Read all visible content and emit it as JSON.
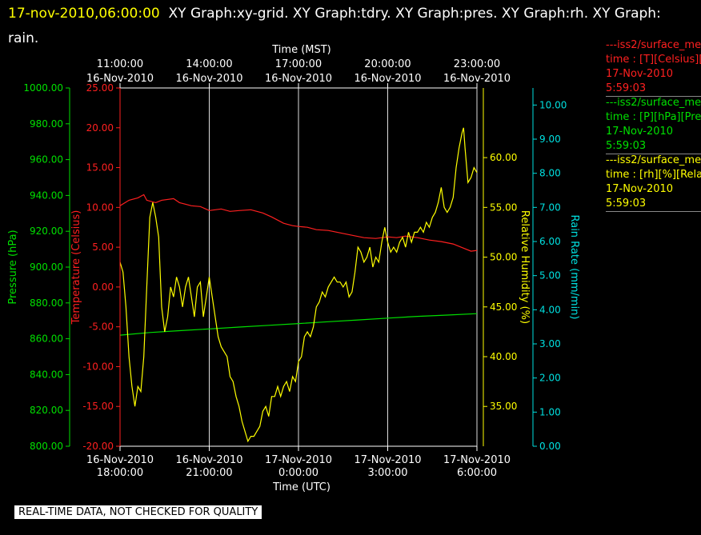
{
  "header": {
    "timestamp": "17-nov-2010,06:00:00",
    "titles": "XY Graph:xy-grid.  XY Graph:tdry.  XY Graph:pres.  XY Graph:rh.  XY Graph: rain."
  },
  "legend": [
    {
      "name": "---iss2/surface_me",
      "line2": "time : [T][Celsius][T",
      "date": "17-Nov-2010",
      "time": "5:59:03",
      "color": "#ff2020"
    },
    {
      "name": "---iss2/surface_me",
      "line2": "time : [P][hPa][Pres",
      "date": "17-Nov-2010",
      "time": "5:59:03",
      "color": "#00e000"
    },
    {
      "name": "---iss2/surface_me",
      "line2": "time : [rh][%][Relati",
      "date": "17-Nov-2010",
      "time": "5:59:03",
      "color": "#ffff00"
    }
  ],
  "banner": "REAL-TIME DATA, NOT CHECKED FOR QUALITY",
  "chart_data": {
    "type": "line",
    "grid": true,
    "x_top": {
      "label": "Time (MST)",
      "ticks": [
        {
          "x": 2,
          "l1": "11:00:00",
          "l2": "16-Nov-2010"
        },
        {
          "x": 5,
          "l1": "14:00:00",
          "l2": "16-Nov-2010"
        },
        {
          "x": 8,
          "l1": "17:00:00",
          "l2": "16-Nov-2010"
        },
        {
          "x": 11,
          "l1": "20:00:00",
          "l2": "16-Nov-2010"
        },
        {
          "x": 14,
          "l1": "23:00:00",
          "l2": "16-Nov-2010"
        }
      ]
    },
    "x_bottom": {
      "label": "Time (UTC)",
      "xlim": [
        0,
        12
      ],
      "ticks": [
        {
          "x": 0,
          "l1": "16-Nov-2010",
          "l2": "18:00:00"
        },
        {
          "x": 3,
          "l1": "16-Nov-2010",
          "l2": "21:00:00"
        },
        {
          "x": 6,
          "l1": "17-Nov-2010",
          "l2": "0:00:00"
        },
        {
          "x": 9,
          "l1": "17-Nov-2010",
          "l2": "3:00:00"
        },
        {
          "x": 12,
          "l1": "17-Nov-2010",
          "l2": "6:00:00"
        }
      ]
    },
    "axes": {
      "pressure": {
        "label": "Pressure (hPa)",
        "ylim": [
          800,
          1000
        ],
        "ticks": [
          "800.00",
          "820.00",
          "840.00",
          "860.00",
          "880.00",
          "900.00",
          "920.00",
          "940.00",
          "960.00",
          "980.00",
          "1000.00"
        ],
        "color": "#00e000"
      },
      "temperature": {
        "label": "Temperature (Celsius)",
        "ylim": [
          -20,
          25
        ],
        "ticks": [
          "-20.00",
          "-15.00",
          "-10.00",
          "-5.00",
          "0.00",
          "5.00",
          "10.00",
          "15.00",
          "20.00",
          "25.00"
        ],
        "color": "#ff2020"
      },
      "humidity": {
        "label": "Relative Humidity (%)",
        "ylim": [
          31,
          67
        ],
        "ticks": [
          "35.00",
          "40.00",
          "45.00",
          "50.00",
          "55.00",
          "60.00"
        ],
        "color": "#ffff00"
      },
      "rain": {
        "label": "Rain Rate (mm/min)",
        "ylim": [
          0,
          10.5
        ],
        "ticks": [
          "0.00",
          "1.00",
          "2.00",
          "3.00",
          "4.00",
          "5.00",
          "6.00",
          "7.00",
          "8.00",
          "9.00",
          "10.00"
        ],
        "color": "#00e0e0"
      }
    },
    "series": [
      {
        "axis": "temperature",
        "color": "#ff2020",
        "points": [
          [
            0,
            10.2
          ],
          [
            0.3,
            10.9
          ],
          [
            0.6,
            11.2
          ],
          [
            0.8,
            11.6
          ],
          [
            0.9,
            10.9
          ],
          [
            1.2,
            10.6
          ],
          [
            1.4,
            10.9
          ],
          [
            1.8,
            11.1
          ],
          [
            2.0,
            10.6
          ],
          [
            2.4,
            10.2
          ],
          [
            2.7,
            10.1
          ],
          [
            3.0,
            9.6
          ],
          [
            3.4,
            9.8
          ],
          [
            3.7,
            9.5
          ],
          [
            4.0,
            9.6
          ],
          [
            4.4,
            9.7
          ],
          [
            4.8,
            9.3
          ],
          [
            5.1,
            8.8
          ],
          [
            5.5,
            8.0
          ],
          [
            5.8,
            7.7
          ],
          [
            6.0,
            7.6
          ],
          [
            6.3,
            7.5
          ],
          [
            6.6,
            7.2
          ],
          [
            7.0,
            7.1
          ],
          [
            7.4,
            6.8
          ],
          [
            7.8,
            6.5
          ],
          [
            8.2,
            6.2
          ],
          [
            8.6,
            6.1
          ],
          [
            9.0,
            6.3
          ],
          [
            9.3,
            6.2
          ],
          [
            9.6,
            6.4
          ],
          [
            10.0,
            6.2
          ],
          [
            10.4,
            5.9
          ],
          [
            10.8,
            5.7
          ],
          [
            11.2,
            5.4
          ],
          [
            11.6,
            4.8
          ],
          [
            11.8,
            4.5
          ],
          [
            12.0,
            4.6
          ]
        ]
      },
      {
        "axis": "pressure",
        "color": "#00e000",
        "points": [
          [
            0,
            862
          ],
          [
            1,
            863.5
          ],
          [
            2,
            864.5
          ],
          [
            3,
            865.5
          ],
          [
            4,
            866.5
          ],
          [
            5,
            867.5
          ],
          [
            6,
            868.5
          ],
          [
            7,
            869.5
          ],
          [
            8,
            870.5
          ],
          [
            9,
            871.5
          ],
          [
            10,
            872.5
          ],
          [
            11,
            873.2
          ],
          [
            12,
            874
          ]
        ]
      },
      {
        "axis": "humidity",
        "color": "#ffff00",
        "points": [
          [
            0,
            49.5
          ],
          [
            0.1,
            48.5
          ],
          [
            0.2,
            45
          ],
          [
            0.3,
            40
          ],
          [
            0.4,
            37
          ],
          [
            0.5,
            35
          ],
          [
            0.6,
            37
          ],
          [
            0.7,
            36.5
          ],
          [
            0.8,
            40
          ],
          [
            0.9,
            47
          ],
          [
            1.0,
            54
          ],
          [
            1.1,
            55.5
          ],
          [
            1.2,
            54
          ],
          [
            1.3,
            52
          ],
          [
            1.4,
            45
          ],
          [
            1.5,
            42.5
          ],
          [
            1.6,
            44
          ],
          [
            1.7,
            47
          ],
          [
            1.8,
            46
          ],
          [
            1.9,
            48
          ],
          [
            2.0,
            47
          ],
          [
            2.1,
            45
          ],
          [
            2.2,
            47
          ],
          [
            2.3,
            48
          ],
          [
            2.4,
            46
          ],
          [
            2.5,
            44
          ],
          [
            2.6,
            47
          ],
          [
            2.7,
            47.5
          ],
          [
            2.8,
            44
          ],
          [
            2.9,
            46
          ],
          [
            3.0,
            48
          ],
          [
            3.1,
            46
          ],
          [
            3.2,
            44
          ],
          [
            3.3,
            42
          ],
          [
            3.4,
            41
          ],
          [
            3.5,
            40.5
          ],
          [
            3.6,
            40
          ],
          [
            3.7,
            38
          ],
          [
            3.8,
            37.5
          ],
          [
            3.9,
            36
          ],
          [
            4.0,
            35
          ],
          [
            4.1,
            33.5
          ],
          [
            4.2,
            32.5
          ],
          [
            4.3,
            31.5
          ],
          [
            4.4,
            32
          ],
          [
            4.5,
            32
          ],
          [
            4.6,
            32.5
          ],
          [
            4.7,
            33
          ],
          [
            4.8,
            34.5
          ],
          [
            4.9,
            35
          ],
          [
            5.0,
            34
          ],
          [
            5.1,
            36
          ],
          [
            5.2,
            36
          ],
          [
            5.3,
            37
          ],
          [
            5.4,
            36
          ],
          [
            5.5,
            37
          ],
          [
            5.6,
            37.5
          ],
          [
            5.7,
            36.5
          ],
          [
            5.8,
            38
          ],
          [
            5.9,
            37.5
          ],
          [
            6.0,
            39.5
          ],
          [
            6.1,
            40
          ],
          [
            6.2,
            42
          ],
          [
            6.3,
            42.5
          ],
          [
            6.4,
            42
          ],
          [
            6.5,
            43
          ],
          [
            6.6,
            45
          ],
          [
            6.7,
            45.5
          ],
          [
            6.8,
            46.5
          ],
          [
            6.9,
            46
          ],
          [
            7.0,
            47
          ],
          [
            7.1,
            47.5
          ],
          [
            7.2,
            48
          ],
          [
            7.3,
            47.5
          ],
          [
            7.4,
            47.5
          ],
          [
            7.5,
            47
          ],
          [
            7.6,
            47.5
          ],
          [
            7.7,
            46
          ],
          [
            7.8,
            46.5
          ],
          [
            7.9,
            48.5
          ],
          [
            8.0,
            51
          ],
          [
            8.1,
            50.5
          ],
          [
            8.2,
            49.5
          ],
          [
            8.3,
            50
          ],
          [
            8.4,
            51
          ],
          [
            8.5,
            49
          ],
          [
            8.6,
            50
          ],
          [
            8.7,
            49.5
          ],
          [
            8.8,
            51.5
          ],
          [
            8.9,
            53
          ],
          [
            9.0,
            51.5
          ],
          [
            9.1,
            50.5
          ],
          [
            9.2,
            51
          ],
          [
            9.3,
            50.5
          ],
          [
            9.4,
            51.5
          ],
          [
            9.5,
            52
          ],
          [
            9.6,
            51
          ],
          [
            9.7,
            52.5
          ],
          [
            9.8,
            51.5
          ],
          [
            9.9,
            52.5
          ],
          [
            10.0,
            52.5
          ],
          [
            10.1,
            53
          ],
          [
            10.2,
            52.5
          ],
          [
            10.3,
            53.5
          ],
          [
            10.4,
            53
          ],
          [
            10.5,
            54
          ],
          [
            10.6,
            54.5
          ],
          [
            10.7,
            55.5
          ],
          [
            10.8,
            57
          ],
          [
            10.9,
            55
          ],
          [
            11.0,
            54.5
          ],
          [
            11.1,
            55
          ],
          [
            11.2,
            56
          ],
          [
            11.3,
            59
          ],
          [
            11.4,
            61
          ],
          [
            11.5,
            62.5
          ],
          [
            11.55,
            63
          ],
          [
            11.6,
            61
          ],
          [
            11.7,
            57.5
          ],
          [
            11.8,
            58
          ],
          [
            11.9,
            59
          ],
          [
            12.0,
            58.5
          ]
        ]
      }
    ]
  }
}
